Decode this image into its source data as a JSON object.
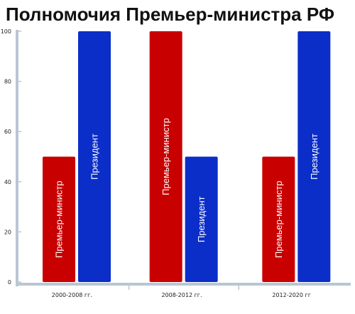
{
  "colors": {
    "prime_minister": "#c80000",
    "president": "#0b2ec9",
    "axis": "#b9c6d3",
    "grid_band": "#e9eef3"
  },
  "chart_data": {
    "type": "bar",
    "title": "Полномочия Премьер-министра РФ",
    "xlabel": "",
    "ylabel": "",
    "ylim": [
      0,
      100
    ],
    "yticks": [
      0,
      20,
      40,
      60,
      80,
      100
    ],
    "grid": false,
    "categories": [
      "2000-2008 гг.",
      "2008-2012 гг.",
      "2012-2020 гг"
    ],
    "series": [
      {
        "name": "Премьер-министр",
        "color_key": "prime_minister",
        "values": [
          50,
          100,
          50
        ]
      },
      {
        "name": "Президент",
        "color_key": "president",
        "values": [
          100,
          50,
          100
        ]
      }
    ]
  }
}
